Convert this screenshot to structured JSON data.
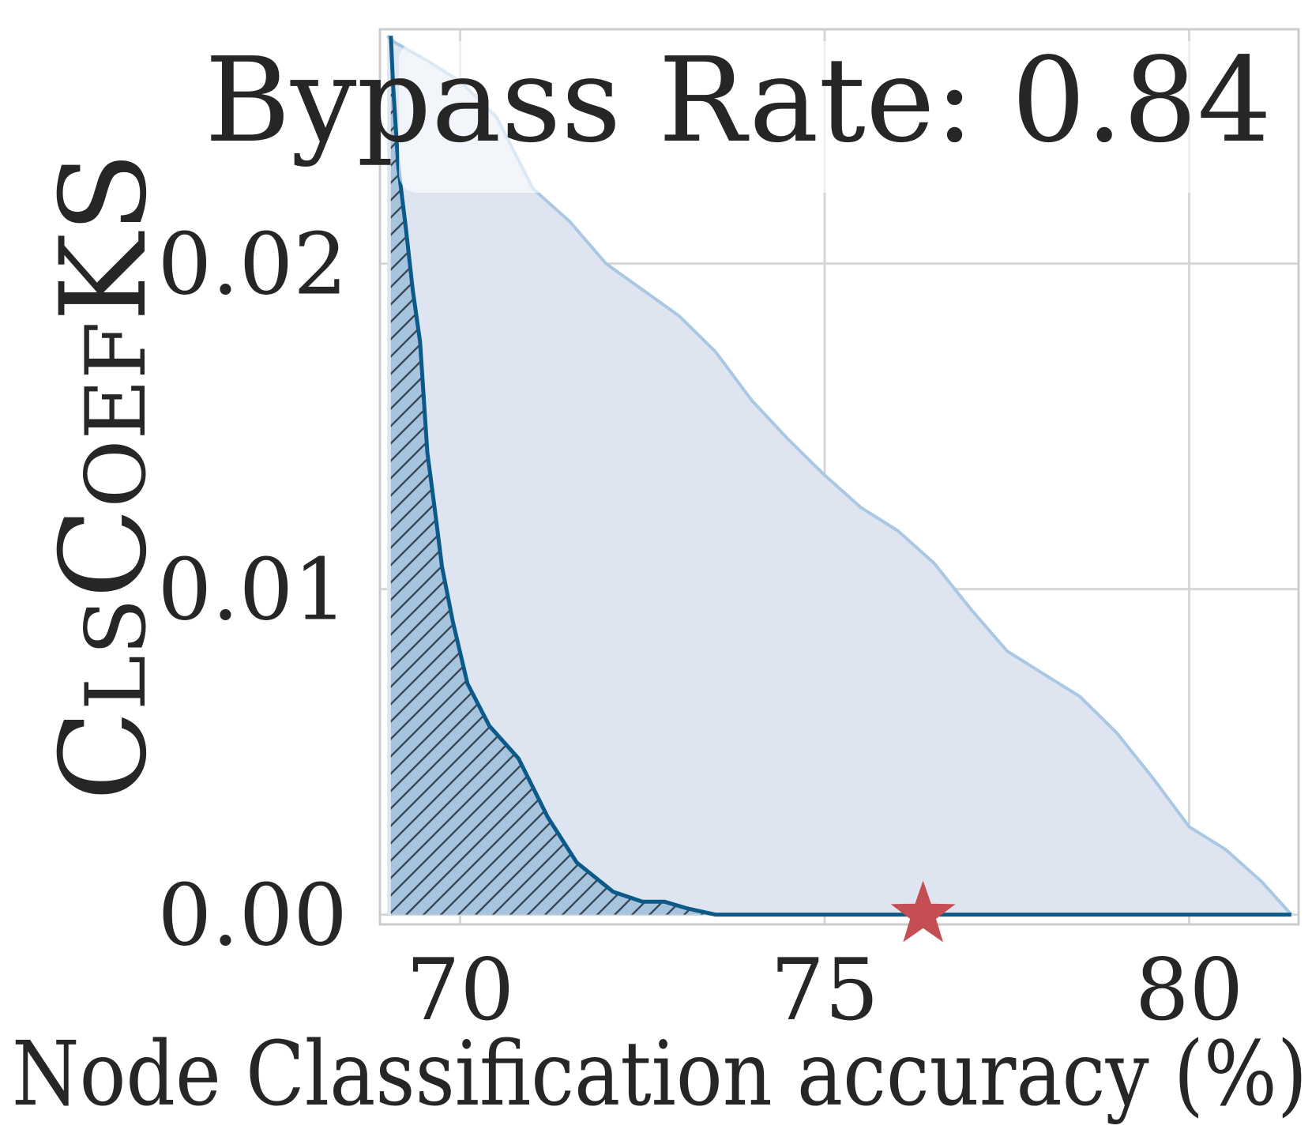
{
  "chart_data": {
    "type": "area",
    "xlabel": "Node Classification accuracy (%)",
    "ylabel": "ClsCoefKS",
    "xlim": [
      68.9,
      81.5
    ],
    "ylim": [
      -0.0003,
      0.0272
    ],
    "x_ticks": [
      70,
      75,
      80
    ],
    "x_tick_labels": [
      "70",
      "75",
      "80"
    ],
    "y_ticks": [
      0.0,
      0.01,
      0.02
    ],
    "y_tick_labels": [
      "0.00",
      "0.01",
      "0.02"
    ],
    "grid": true,
    "annotation": "Bypass Rate: 0.84",
    "annotation_position": "top-right",
    "series": [
      {
        "role": "envelope",
        "style": "light filled area",
        "line_color": "#a9c8e3",
        "fill_color": "#dfe5f0",
        "x": [
          69.0,
          69.1,
          69.5,
          70.0,
          70.5,
          71.0,
          71.5,
          72.0,
          72.5,
          73.0,
          73.5,
          74.0,
          74.5,
          75.0,
          75.5,
          76.0,
          76.5,
          77.0,
          77.5,
          78.0,
          78.5,
          79.0,
          79.5,
          80.0,
          80.5,
          81.0,
          81.4
        ],
        "y": [
          0.027,
          0.0268,
          0.0263,
          0.0256,
          0.0245,
          0.0223,
          0.0213,
          0.02,
          0.0192,
          0.0184,
          0.0173,
          0.0158,
          0.0146,
          0.0135,
          0.0125,
          0.0118,
          0.0108,
          0.0094,
          0.0081,
          0.0074,
          0.0067,
          0.0056,
          0.0042,
          0.0027,
          0.002,
          0.001,
          0.0
        ],
        "fill": "between curve and y = 0"
      },
      {
        "role": "curve",
        "style": "dark line with hatched fill",
        "line_color": "#0b5a8a",
        "fill_color": "#a7c4df",
        "hatch": "diagonal",
        "x": [
          69.05,
          69.08,
          69.15,
          69.25,
          69.35,
          69.45,
          69.55,
          69.65,
          69.75,
          69.9,
          70.1,
          70.4,
          70.8,
          71.2,
          71.6,
          72.1,
          72.5,
          72.8,
          73.1,
          73.5,
          74.0,
          75.0,
          76.0,
          77.0,
          78.0,
          79.0,
          80.0,
          81.0,
          81.4
        ],
        "y": [
          0.027,
          0.0255,
          0.023,
          0.0212,
          0.0192,
          0.0176,
          0.0142,
          0.0125,
          0.0107,
          0.009,
          0.0071,
          0.0058,
          0.0048,
          0.003,
          0.0016,
          0.0007,
          0.0004,
          0.0004,
          0.0002,
          0.0,
          0.0,
          0.0,
          0.0,
          0.0,
          0.0,
          0.0,
          0.0,
          0.0,
          0.0
        ],
        "fill": "hatched between curve and y = 0"
      }
    ],
    "marker": {
      "shape": "star",
      "color": "#c44e52",
      "x": 76.35,
      "y": 0.0
    }
  }
}
